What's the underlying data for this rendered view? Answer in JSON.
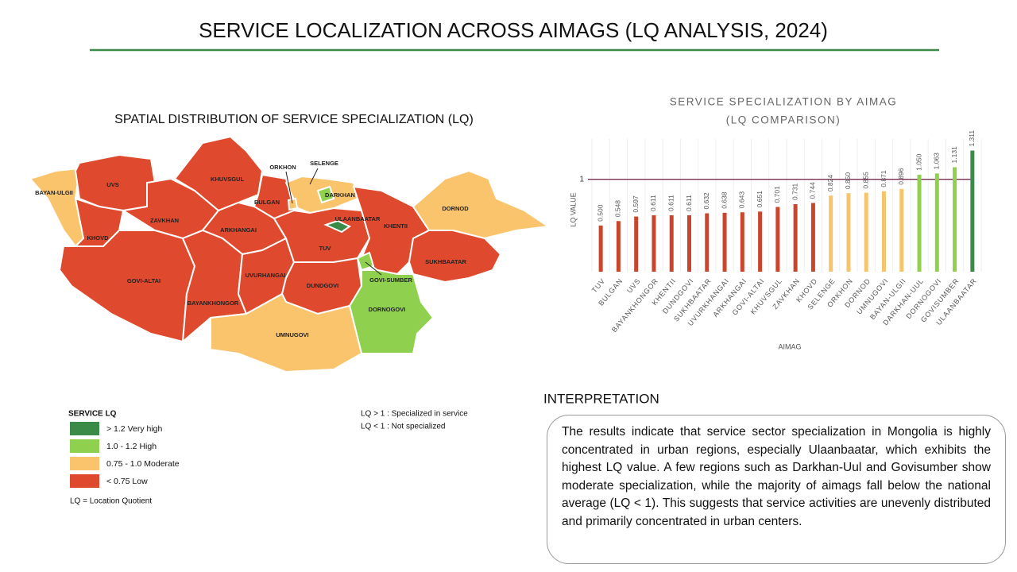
{
  "title": "SERVICE LOCALIZATION ACROSS AIMAGS (LQ ANALYSIS, 2024)",
  "map": {
    "title": "SPATIAL DISTRIBUTION OF SERVICE SPECIALIZATION (LQ)",
    "regions": [
      {
        "label": "BAYAN-ULGII",
        "color": "#f9c46b"
      },
      {
        "label": "UVS",
        "color": "#df4a2e"
      },
      {
        "label": "KHOVD",
        "color": "#df4a2e"
      },
      {
        "label": "ZAVKHAN",
        "color": "#df4a2e"
      },
      {
        "label": "KHUVSGUL",
        "color": "#df4a2e"
      },
      {
        "label": "BULGAN",
        "color": "#df4a2e"
      },
      {
        "label": "ORKHON",
        "color": "#f9c46b"
      },
      {
        "label": "SELENGE",
        "color": "#f9c46b"
      },
      {
        "label": "DARKHAN",
        "color": "#8fd14f"
      },
      {
        "label": "ARKHANGAI",
        "color": "#df4a2e"
      },
      {
        "label": "GOVI-ALTAI",
        "color": "#df4a2e"
      },
      {
        "label": "BAYANKHONGOR",
        "color": "#df4a2e"
      },
      {
        "label": "UVURHANGAI",
        "color": "#df4a2e"
      },
      {
        "label": "TUV",
        "color": "#df4a2e"
      },
      {
        "label": "ULAANBAATAR",
        "color": "#3b8b48"
      },
      {
        "label": "DUNDGOVI",
        "color": "#df4a2e"
      },
      {
        "label": "KHENTII",
        "color": "#df4a2e"
      },
      {
        "label": "DORNOD",
        "color": "#f9c46b"
      },
      {
        "label": "SUKHBAATAR",
        "color": "#df4a2e"
      },
      {
        "label": "GOVI-SUMBER",
        "color": "#8fd14f"
      },
      {
        "label": "DORNOGOVI",
        "color": "#8fd14f"
      },
      {
        "label": "UMNUGOVI",
        "color": "#f9c46b"
      }
    ]
  },
  "legend": {
    "title": "SERVICE LQ",
    "items": [
      {
        "label": "> 1.2 Very high",
        "color": "#3b8b48"
      },
      {
        "label": "1.0 - 1.2 High",
        "color": "#8fd14f"
      },
      {
        "label": "0.75 - 1.0 Moderate",
        "color": "#f9c46b"
      },
      {
        "label": "< 0.75 Low",
        "color": "#df4a2e"
      }
    ],
    "note": "LQ = Location Quotient"
  },
  "notes": [
    "LQ > 1 :  Specialized in service",
    "LQ < 1 :  Not specialized"
  ],
  "chart_data": {
    "type": "bar",
    "title": [
      "SERVICE SPECIALIZATION BY AIMAG",
      "(LQ COMPARISON)"
    ],
    "y_label": "LQ VALUE",
    "x_label": "AIMAG",
    "categories": [
      "TUV",
      "BULGAN",
      "UVS",
      "BAYANKHONGOR",
      "KHENTII",
      "DUNDGOVI",
      "SUKHBAATAR",
      "UVURKHANGAI",
      "ARKHANGAI",
      "GOVI-ALTAI",
      "KHUVSGUL",
      "ZAVKHAN",
      "KHOVD",
      "SELENGE",
      "ORKHON",
      "DORNOD",
      "UMNUGOVI",
      "BAYAN-ULGII",
      "DARKHAN-UUL",
      "DORNOGOVI",
      "GOVISUMBER",
      "ULAANBAATAR"
    ],
    "values": [
      0.5,
      0.548,
      0.597,
      0.611,
      0.611,
      0.611,
      0.632,
      0.638,
      0.643,
      0.651,
      0.701,
      0.731,
      0.744,
      0.824,
      0.85,
      0.855,
      0.871,
      0.896,
      1.05,
      1.063,
      1.131,
      1.311
    ],
    "value_labels": [
      "0.500",
      "0.548",
      "0.597",
      "0.611",
      "0.611",
      "0.611",
      "0.632",
      "0.638",
      "0.643",
      "0.651",
      "0.701",
      "0.731",
      "0.744",
      "0.824",
      "0.850",
      "0.855",
      "0.871",
      "0.896",
      "1.050",
      "1.063",
      "1.131",
      "1.311"
    ],
    "colors": [
      "#c9452c",
      "#c9452c",
      "#c9452c",
      "#c9452c",
      "#c9452c",
      "#c9452c",
      "#c9452c",
      "#c9452c",
      "#c9452c",
      "#c9452c",
      "#c9452c",
      "#c9452c",
      "#c9452c",
      "#f7c46e",
      "#f7c46e",
      "#f7c46e",
      "#f7c46e",
      "#f7c46e",
      "#8fd14f",
      "#8fd14f",
      "#8fd14f",
      "#3b8b48"
    ],
    "ylim": [
      0,
      1.35
    ],
    "yticks": [
      1
    ],
    "tick_line_color": "#7a2d55"
  },
  "interpretation": {
    "heading": "INTERPRETATION",
    "text": "The results indicate that service sector specialization in Mongolia is highly concentrated in urban regions, especially Ulaanbaatar, which exhibits the highest LQ value. A few regions such as Darkhan-Uul and Govisumber show moderate specialization, while the majority of aimags fall below the national average (LQ < 1). This suggests that service activities are unevenly distributed and primarily concentrated in urban centers."
  }
}
